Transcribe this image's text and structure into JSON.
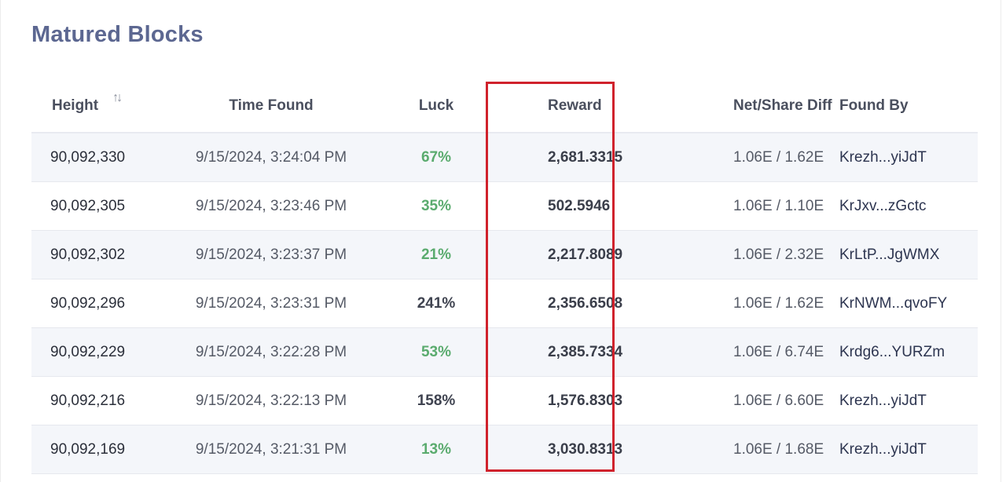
{
  "title": "Matured Blocks",
  "columns": {
    "height": "Height",
    "time_found": "Time Found",
    "luck": "Luck",
    "reward": "Reward",
    "net_share_diff": "Net/Share Diff",
    "found_by": "Found By"
  },
  "rows": [
    {
      "height": "90,092,330",
      "time": "9/15/2024, 3:24:04 PM",
      "luck": "67%",
      "reward": "2,681.3315",
      "diff": "1.06E / 1.62E",
      "found_by": "Krezh...yiJdT"
    },
    {
      "height": "90,092,305",
      "time": "9/15/2024, 3:23:46 PM",
      "luck": "35%",
      "reward": "502.5946",
      "diff": "1.06E / 1.10E",
      "found_by": "KrJxv...zGctc"
    },
    {
      "height": "90,092,302",
      "time": "9/15/2024, 3:23:37 PM",
      "luck": "21%",
      "reward": "2,217.8089",
      "diff": "1.06E / 2.32E",
      "found_by": "KrLtP...JgWMX"
    },
    {
      "height": "90,092,296",
      "time": "9/15/2024, 3:23:31 PM",
      "luck": "241%",
      "reward": "2,356.6508",
      "diff": "1.06E / 1.62E",
      "found_by": "KrNWM...qvoFY"
    },
    {
      "height": "90,092,229",
      "time": "9/15/2024, 3:22:28 PM",
      "luck": "53%",
      "reward": "2,385.7334",
      "diff": "1.06E / 6.74E",
      "found_by": "Krdg6...YURZm"
    },
    {
      "height": "90,092,216",
      "time": "9/15/2024, 3:22:13 PM",
      "luck": "158%",
      "reward": "1,576.8303",
      "diff": "1.06E / 6.60E",
      "found_by": "Krezh...yiJdT"
    },
    {
      "height": "90,092,169",
      "time": "9/15/2024, 3:21:31 PM",
      "luck": "13%",
      "reward": "3,030.8313",
      "diff": "1.06E / 1.68E",
      "found_by": "Krezh...yiJdT"
    }
  ],
  "icons": {
    "sort": "sort-arrows-icon"
  },
  "colors": {
    "title": "#5c6791",
    "luck_good": "#5aab6e",
    "luck_bad": "#3f4350",
    "highlight_border": "#d0222c",
    "row_alt": "#f4f6fa"
  }
}
